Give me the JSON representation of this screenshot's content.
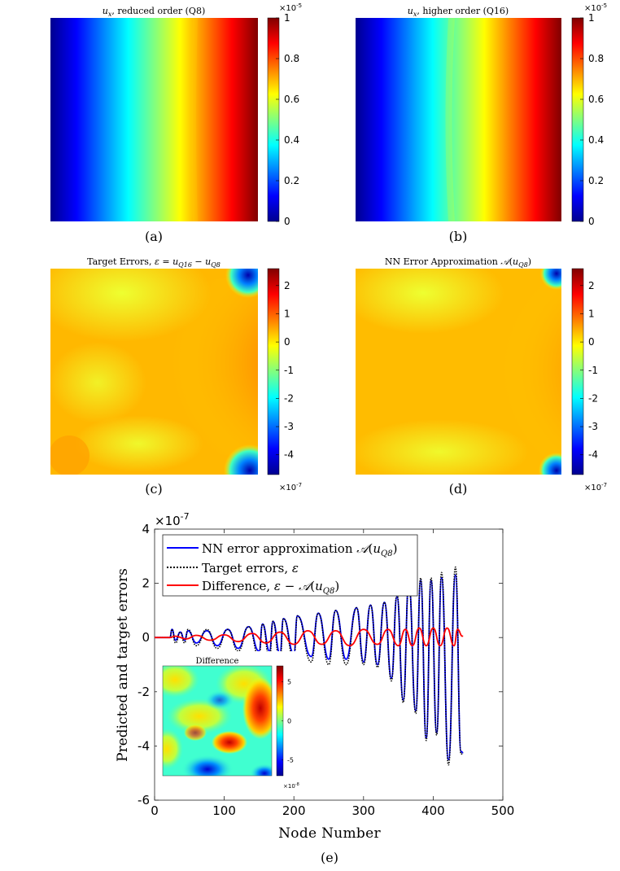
{
  "chart_data": [
    {
      "type": "heatmap",
      "id": "a",
      "title": "u_x, reduced order (Q8)",
      "panel_label": "(a)",
      "colorbar": {
        "ticks": [
          "0",
          "0.2",
          "0.4",
          "0.6",
          "0.8",
          "1"
        ],
        "exponent": "×10-5",
        "range": [
          0,
          1
        ]
      },
      "field": "ux",
      "colormap": "jet",
      "colors": {
        "low": "#00008f",
        "mid": "#80ff80",
        "high": "#800000"
      }
    },
    {
      "type": "heatmap",
      "id": "b",
      "title": "u_x, higher order (Q16)",
      "panel_label": "(b)",
      "colorbar": {
        "ticks": [
          "0",
          "0.2",
          "0.4",
          "0.6",
          "0.8",
          "1"
        ],
        "exponent": "×10-5",
        "range": [
          0,
          1
        ]
      },
      "field": "ux",
      "colormap": "jet"
    },
    {
      "type": "heatmap",
      "id": "c",
      "title": "Target Errors, ε = u_Q16 − u_Q8",
      "panel_label": "(c)",
      "colorbar": {
        "ticks": [
          "2",
          "1",
          "0",
          "-1",
          "-2",
          "-3",
          "-4"
        ],
        "exponent": "×10-7",
        "range": [
          -4.7,
          2.6
        ]
      },
      "field": "error",
      "colormap": "jet"
    },
    {
      "type": "heatmap",
      "id": "d",
      "title": "NN Error Approximation A(u_Q8)",
      "panel_label": "(d)",
      "colorbar": {
        "ticks": [
          "2",
          "1",
          "0",
          "-1",
          "-2",
          "-3",
          "-4"
        ],
        "exponent": "×10-7",
        "range": [
          -4.7,
          2.6
        ]
      },
      "field": "error",
      "colormap": "jet"
    },
    {
      "type": "line",
      "id": "e",
      "panel_label": "(e)",
      "xlabel": "Node Number",
      "ylabel": "Predicted and target errors",
      "exponent": "×10-7",
      "xlim": [
        0,
        500
      ],
      "ylim": [
        -6,
        4
      ],
      "xticks": [
        "0",
        "100",
        "200",
        "300",
        "400",
        "500"
      ],
      "yticks": [
        "4",
        "2",
        "0",
        "-2",
        "-4",
        "-6"
      ],
      "legend_position": "top-left",
      "series": [
        {
          "name": "NN error approximation A(u_Q8)",
          "color": "#0000ff",
          "style": "solid",
          "peaks": [
            [
              25,
              0.3
            ],
            [
              37,
              0.2
            ],
            [
              48,
              0.25
            ],
            [
              75,
              0.25
            ],
            [
              105,
              0.3
            ],
            [
              135,
              0.4
            ],
            [
              155,
              0.5
            ],
            [
              170,
              0.6
            ],
            [
              185,
              0.7
            ],
            [
              205,
              0.8
            ],
            [
              235,
              0.9
            ],
            [
              260,
              1.0
            ],
            [
              290,
              1.1
            ],
            [
              310,
              1.2
            ],
            [
              330,
              1.3
            ],
            [
              348,
              1.5
            ],
            [
              365,
              2.0
            ],
            [
              382,
              2.1
            ],
            [
              397,
              2.1
            ],
            [
              412,
              2.2
            ],
            [
              432,
              2.3
            ]
          ],
          "troughs": [
            [
              30,
              -0.1
            ],
            [
              43,
              -0.1
            ],
            [
              60,
              -0.2
            ],
            [
              90,
              -0.3
            ],
            [
              120,
              -0.4
            ],
            [
              150,
              -0.5
            ],
            [
              165,
              -0.5
            ],
            [
              180,
              -0.6
            ],
            [
              200,
              -0.6
            ],
            [
              225,
              -0.7
            ],
            [
              250,
              -0.8
            ],
            [
              275,
              -0.8
            ],
            [
              300,
              -0.9
            ],
            [
              320,
              -1.0
            ],
            [
              340,
              -1.5
            ],
            [
              357,
              -2.3
            ],
            [
              375,
              -2.7
            ],
            [
              390,
              -3.7
            ],
            [
              405,
              -3.5
            ],
            [
              422,
              -4.5
            ],
            [
              440,
              -4.2
            ]
          ]
        },
        {
          "name": "Target errors, ε",
          "color": "#000000",
          "style": "dotted",
          "peaks": [
            [
              25,
              0.3
            ],
            [
              37,
              0.2
            ],
            [
              48,
              0.3
            ],
            [
              75,
              0.3
            ],
            [
              105,
              0.3
            ],
            [
              135,
              0.4
            ],
            [
              155,
              0.5
            ],
            [
              170,
              0.6
            ],
            [
              185,
              0.7
            ],
            [
              205,
              0.8
            ],
            [
              235,
              0.9
            ],
            [
              260,
              1.0
            ],
            [
              290,
              1.1
            ],
            [
              310,
              1.2
            ],
            [
              330,
              1.3
            ],
            [
              348,
              1.6
            ],
            [
              365,
              2.0
            ],
            [
              382,
              2.2
            ],
            [
              397,
              2.2
            ],
            [
              412,
              2.4
            ],
            [
              432,
              2.6
            ]
          ],
          "troughs": [
            [
              30,
              -0.2
            ],
            [
              43,
              -0.2
            ],
            [
              60,
              -0.3
            ],
            [
              90,
              -0.4
            ],
            [
              120,
              -0.5
            ],
            [
              150,
              -0.7
            ],
            [
              165,
              -0.8
            ],
            [
              180,
              -1.0
            ],
            [
              200,
              -0.8
            ],
            [
              225,
              -0.9
            ],
            [
              250,
              -1.0
            ],
            [
              275,
              -1.0
            ],
            [
              300,
              -1.0
            ],
            [
              320,
              -1.1
            ],
            [
              340,
              -1.6
            ],
            [
              357,
              -2.4
            ],
            [
              375,
              -2.8
            ],
            [
              390,
              -3.8
            ],
            [
              405,
              -3.6
            ],
            [
              422,
              -4.7
            ],
            [
              440,
              -4.3
            ]
          ]
        },
        {
          "name": "Difference, ε − A(u_Q8)",
          "color": "#ff0000",
          "style": "solid",
          "peaks": [
            [
              30,
              0.05
            ],
            [
              60,
              0.08
            ],
            [
              100,
              0.1
            ],
            [
              140,
              0.15
            ],
            [
              180,
              0.2
            ],
            [
              220,
              0.25
            ],
            [
              260,
              0.25
            ],
            [
              300,
              0.3
            ],
            [
              335,
              0.3
            ],
            [
              360,
              0.3
            ],
            [
              380,
              0.35
            ],
            [
              400,
              0.35
            ],
            [
              420,
              0.35
            ],
            [
              435,
              0.3
            ]
          ],
          "troughs": [
            [
              45,
              -0.05
            ],
            [
              80,
              -0.1
            ],
            [
              120,
              -0.15
            ],
            [
              160,
              -0.2
            ],
            [
              200,
              -0.25
            ],
            [
              240,
              -0.25
            ],
            [
              280,
              -0.3
            ],
            [
              320,
              -0.25
            ],
            [
              350,
              -0.3
            ],
            [
              370,
              -0.3
            ],
            [
              390,
              -0.3
            ],
            [
              410,
              -0.3
            ],
            [
              430,
              -0.3
            ],
            [
              442,
              0.05
            ]
          ]
        }
      ],
      "inset": {
        "title": "Difference",
        "colorbar": {
          "ticks": [
            "5",
            "0",
            "-5"
          ],
          "exponent": "×10-8",
          "range": [
            -7,
            7
          ]
        }
      }
    }
  ]
}
